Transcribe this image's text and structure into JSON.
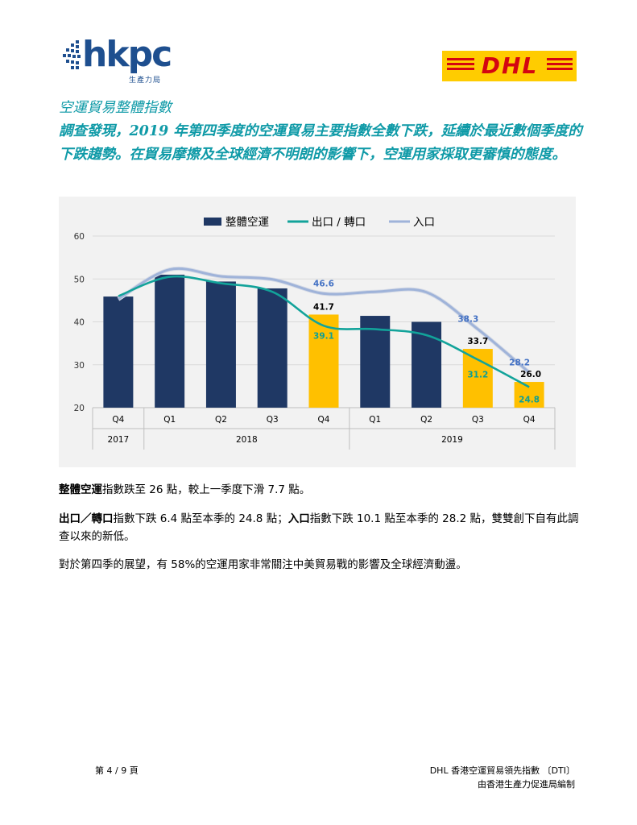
{
  "header": {
    "hkpc_logo_text": "hkpc",
    "hkpc_logo_sub": "生產力局",
    "dhl_logo_text": "DHL"
  },
  "headline": {
    "title": "空運貿易整體指數",
    "summary": "調查發現，2019 年第四季度的空運貿易主要指數全數下跌，延續於最近數個季度的下跌趨勢。在貿易摩擦及全球經濟不明朗的影響下，空運用家採取更審慎的態度。"
  },
  "chart_data": {
    "type": "bar",
    "legend": [
      "整體空運",
      "出口 / 轉口",
      "入口"
    ],
    "legend_position": "top",
    "categories": [
      "Q4",
      "Q1",
      "Q2",
      "Q3",
      "Q4",
      "Q1",
      "Q2",
      "Q3",
      "Q4"
    ],
    "year_groups": [
      {
        "label": "2017",
        "span": 1
      },
      {
        "label": "2018",
        "span": 4
      },
      {
        "label": "2019",
        "span": 4
      }
    ],
    "ylim": [
      20,
      60
    ],
    "yticks": [
      20,
      30,
      40,
      50,
      60
    ],
    "grid": true,
    "series": [
      {
        "name": "整體空運",
        "kind": "bar",
        "color": "#1f3864",
        "values": [
          45.9,
          51.0,
          49.4,
          47.8,
          41.7,
          41.4,
          40.0,
          33.7,
          26.0
        ],
        "highlight": [
          4,
          7,
          8
        ],
        "highlight_color": "#ffc000",
        "labels": {
          "4": "41.7",
          "7": "33.7",
          "8": "26.0"
        }
      },
      {
        "name": "出口 / 轉口",
        "kind": "line",
        "color": "#12a39a",
        "values": [
          46.0,
          50.5,
          49.0,
          47.0,
          39.1,
          38.3,
          36.9,
          31.2,
          24.8
        ],
        "labels": {
          "4": "39.1",
          "7": "31.2",
          "8": "24.8"
        }
      },
      {
        "name": "入口",
        "kind": "line",
        "color": "#9fb3d9",
        "values": [
          45.3,
          52.2,
          50.6,
          49.9,
          46.6,
          47.0,
          46.9,
          38.3,
          28.2
        ],
        "labels": {
          "4": "46.6",
          "7": "38.3",
          "8": "28.2"
        }
      }
    ]
  },
  "body": {
    "p1_bold": "整體空運",
    "p1_text": "指數跌至 26 點，較上一季度下滑 7.7 點。",
    "p2_bold1": "出口／轉口",
    "p2_text1": "指數下跌 6.4 點至本季的 24.8 點；",
    "p2_bold2": "入口",
    "p2_text2": "指數下跌 10.1 點至本季的 28.2 點，雙雙創下自有此調查以來的新低。",
    "p3_text": "對於第四季的展望，有 58%的空運用家非常關注中美貿易戰的影響及全球經濟動盪。"
  },
  "footer": {
    "page": "第 4 / 9 頁",
    "doc_title": "DHL 香港空運貿易領先指數 〔DTI〕",
    "compiler": "由香港生產力促進局編制"
  }
}
